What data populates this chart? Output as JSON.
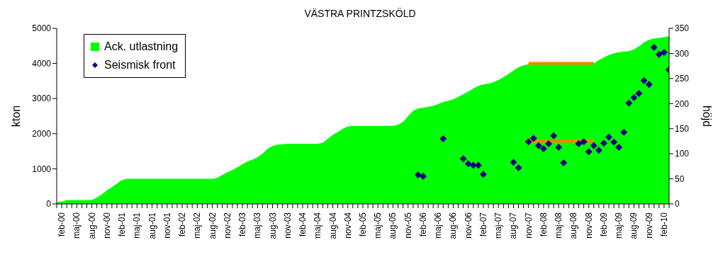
{
  "chart_data": {
    "type": "area",
    "title": "VÄSTRA PRINTZSKÖLD",
    "ylabel": "kton",
    "y2label": "höjd",
    "categories": [
      null,
      "feb-00",
      null,
      null,
      "maj-00",
      null,
      null,
      "aug-00",
      null,
      null,
      "nov-00",
      null,
      null,
      "feb-01",
      null,
      null,
      "maj-01",
      null,
      null,
      "aug-01",
      null,
      null,
      "nov-01",
      null,
      null,
      "feb-02",
      null,
      null,
      "maj-02",
      null,
      null,
      "aug-02",
      null,
      null,
      "nov-02",
      null,
      null,
      "feb-03",
      null,
      null,
      "maj-03",
      null,
      null,
      "aug-03",
      null,
      null,
      "nov-03",
      null,
      null,
      "feb-04",
      null,
      null,
      "maj-04",
      null,
      null,
      "aug-04",
      null,
      null,
      "nov-04",
      null,
      null,
      "feb-05",
      null,
      null,
      "maj-05",
      null,
      null,
      "aug-05",
      null,
      null,
      "nov-05",
      null,
      null,
      "feb-06",
      null,
      null,
      "maj-06",
      null,
      null,
      "aug-06",
      null,
      null,
      "nov-06",
      null,
      null,
      "feb-07",
      null,
      null,
      "maj-07",
      null,
      null,
      "aug-07",
      null,
      null,
      "nov-07",
      null,
      null,
      "feb-08",
      null,
      null,
      "maj-08",
      null,
      null,
      "aug-08",
      null,
      null,
      "nov-08",
      null,
      null,
      "feb-09",
      null,
      null,
      "maj-09",
      null,
      null,
      "aug-09",
      null,
      null,
      "nov-09",
      null,
      null,
      "feb-10",
      null
    ],
    "series": [
      {
        "name": "Ack. utlastning",
        "type": "area",
        "color": "#00ff00",
        "values": [
          50,
          60,
          110,
          110,
          110,
          110,
          110,
          110,
          180,
          270,
          390,
          480,
          580,
          680,
          715,
          715,
          715,
          715,
          715,
          715,
          715,
          715,
          715,
          715,
          715,
          715,
          715,
          715,
          715,
          715,
          715,
          715,
          740,
          825,
          900,
          970,
          1045,
          1130,
          1210,
          1260,
          1330,
          1430,
          1570,
          1650,
          1695,
          1700,
          1715,
          1715,
          1715,
          1715,
          1715,
          1715,
          1715,
          1740,
          1850,
          1970,
          2045,
          2140,
          2210,
          2225,
          2225,
          2225,
          2225,
          2225,
          2225,
          2225,
          2225,
          2225,
          2260,
          2335,
          2500,
          2650,
          2720,
          2740,
          2760,
          2795,
          2845,
          2905,
          2940,
          2980,
          3050,
          3125,
          3200,
          3285,
          3360,
          3400,
          3420,
          3470,
          3530,
          3610,
          3700,
          3800,
          3890,
          3945,
          3975,
          3990,
          3990,
          3990,
          3990,
          3990,
          3990,
          3990,
          3990,
          3990,
          3990,
          3990,
          3990,
          4000,
          4100,
          4170,
          4240,
          4290,
          4320,
          4340,
          4350,
          4400,
          4490,
          4600,
          4670,
          4710,
          4730,
          4750,
          4780
        ]
      },
      {
        "name": "Seismisk front",
        "type": "scatter",
        "axis": "y2",
        "marker": "diamond",
        "color": "#000080",
        "values": [
          null,
          null,
          null,
          null,
          null,
          null,
          null,
          null,
          null,
          null,
          null,
          null,
          null,
          null,
          null,
          null,
          null,
          null,
          null,
          null,
          null,
          null,
          null,
          null,
          null,
          null,
          null,
          null,
          null,
          null,
          null,
          null,
          null,
          null,
          null,
          null,
          null,
          null,
          null,
          null,
          null,
          null,
          null,
          null,
          null,
          null,
          null,
          null,
          null,
          null,
          null,
          null,
          null,
          null,
          null,
          null,
          null,
          null,
          null,
          null,
          null,
          null,
          null,
          null,
          null,
          null,
          null,
          null,
          null,
          null,
          null,
          null,
          58,
          55,
          null,
          null,
          null,
          130,
          null,
          null,
          null,
          90,
          80,
          77,
          77,
          59,
          null,
          null,
          null,
          null,
          null,
          83,
          72,
          null,
          124,
          131,
          116,
          110,
          120,
          136,
          113,
          82,
          null,
          null,
          120,
          124,
          104,
          116,
          107,
          121,
          133,
          123,
          113,
          143,
          201,
          212,
          220,
          246,
          238,
          312,
          298,
          302,
          267
        ]
      },
      {
        "type": "line",
        "color": "#ff8000",
        "values": [
          null,
          null,
          null,
          null,
          null,
          null,
          null,
          null,
          null,
          null,
          null,
          null,
          null,
          null,
          null,
          null,
          null,
          null,
          null,
          null,
          null,
          null,
          null,
          null,
          null,
          null,
          null,
          null,
          null,
          null,
          null,
          null,
          null,
          null,
          null,
          null,
          null,
          null,
          null,
          null,
          null,
          null,
          null,
          null,
          null,
          null,
          null,
          null,
          null,
          null,
          null,
          null,
          null,
          null,
          null,
          null,
          null,
          null,
          null,
          null,
          null,
          null,
          null,
          null,
          null,
          null,
          null,
          null,
          null,
          null,
          null,
          null,
          null,
          null,
          null,
          null,
          null,
          null,
          null,
          null,
          null,
          null,
          null,
          null,
          null,
          null,
          null,
          null,
          null,
          null,
          null,
          null,
          null,
          null,
          4000,
          4000,
          4000,
          4000,
          4000,
          4000,
          4000,
          4000,
          4000,
          4000,
          4000,
          4000,
          4000,
          4000,
          null,
          null,
          null,
          null,
          null,
          null,
          null,
          null,
          null,
          null,
          null,
          null,
          null,
          null,
          null
        ]
      },
      {
        "type": "line",
        "axis": "y2",
        "color": "#ff8000",
        "values": [
          null,
          null,
          null,
          null,
          null,
          null,
          null,
          null,
          null,
          null,
          null,
          null,
          null,
          null,
          null,
          null,
          null,
          null,
          null,
          null,
          null,
          null,
          null,
          null,
          null,
          null,
          null,
          null,
          null,
          null,
          null,
          null,
          null,
          null,
          null,
          null,
          null,
          null,
          null,
          null,
          null,
          null,
          null,
          null,
          null,
          null,
          null,
          null,
          null,
          null,
          null,
          null,
          null,
          null,
          null,
          null,
          null,
          null,
          null,
          null,
          null,
          null,
          null,
          null,
          null,
          null,
          null,
          null,
          null,
          null,
          null,
          null,
          null,
          null,
          null,
          null,
          null,
          null,
          null,
          null,
          null,
          null,
          null,
          null,
          null,
          null,
          null,
          null,
          null,
          null,
          null,
          null,
          null,
          null,
          125,
          125,
          125,
          125,
          125,
          125,
          125,
          125,
          125,
          125,
          125,
          125,
          125,
          125,
          null,
          null,
          null,
          null,
          null,
          null,
          null,
          null,
          null,
          null,
          null,
          null,
          null,
          null,
          null
        ]
      }
    ],
    "ylim": [
      0,
      5000
    ],
    "yticks": [
      0,
      1000,
      2000,
      3000,
      4000,
      5000
    ],
    "y2lim": [
      0,
      350
    ],
    "y2ticks": [
      0,
      50,
      100,
      150,
      200,
      250,
      300,
      350
    ],
    "grid": false,
    "legend": "top left"
  }
}
